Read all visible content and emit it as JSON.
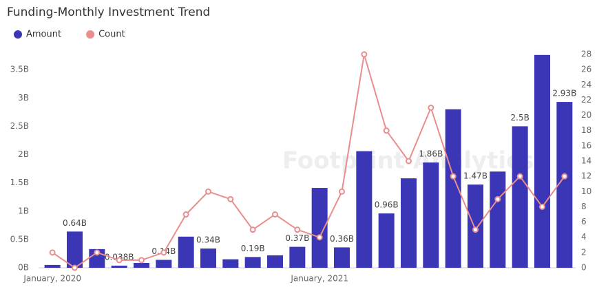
{
  "chart_data": {
    "type": "bar_line",
    "title": "Funding-Monthly Investment Trend",
    "watermark": "Footprint Analytics",
    "categories": [
      "January, 2020",
      null,
      null,
      null,
      null,
      null,
      null,
      null,
      null,
      null,
      null,
      null,
      "January, 2021",
      null,
      null,
      null,
      null,
      null,
      null,
      null,
      null,
      null,
      null,
      null
    ],
    "series": [
      {
        "name": "Amount",
        "type": "bar",
        "color": "#3a36b6",
        "values": [
          0.05,
          0.64,
          0.33,
          0.038,
          0.085,
          0.14,
          0.55,
          0.34,
          0.15,
          0.19,
          0.22,
          0.37,
          1.41,
          0.36,
          2.06,
          0.96,
          1.58,
          1.86,
          2.8,
          1.47,
          1.7,
          2.5,
          3.76,
          2.93
        ],
        "value_labels": [
          null,
          "0.64B",
          null,
          "0.038B",
          null,
          "0.14B",
          null,
          "0.34B",
          null,
          "0.19B",
          null,
          "0.37B",
          null,
          "0.36B",
          null,
          "0.96B",
          null,
          "1.86B",
          null,
          "1.47B",
          null,
          "2.5B",
          null,
          "2.93B"
        ]
      },
      {
        "name": "Count",
        "type": "line",
        "axis": "y2",
        "color": "#e98d8d",
        "values": [
          2,
          0,
          2,
          1,
          1,
          2,
          7,
          10,
          9,
          5,
          7,
          5,
          4,
          10,
          28,
          18,
          14,
          21,
          12,
          5,
          9,
          12,
          8,
          12
        ]
      }
    ],
    "ylim": [
      0,
      3.77
    ],
    "yticks": [
      {
        "value": 0,
        "label": "0B"
      },
      {
        "value": 0.5,
        "label": "0.5B"
      },
      {
        "value": 1,
        "label": "1B"
      },
      {
        "value": 1.5,
        "label": "1.5B"
      },
      {
        "value": 2,
        "label": "2B"
      },
      {
        "value": 2.5,
        "label": "2.5B"
      },
      {
        "value": 3,
        "label": "3B"
      },
      {
        "value": 3.5,
        "label": "3.5B"
      }
    ],
    "y2lim": [
      0,
      28
    ],
    "y2ticks": [
      0,
      2,
      4,
      6,
      8,
      10,
      12,
      14,
      16,
      18,
      20,
      22,
      24,
      26,
      28
    ],
    "legend": "top-left",
    "grid": false
  }
}
